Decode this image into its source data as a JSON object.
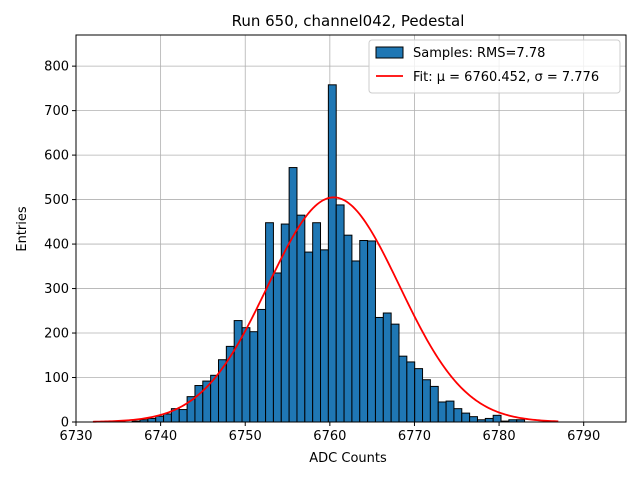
{
  "chart_data": {
    "type": "bar",
    "title": "Run 650, channel042, Pedestal",
    "xlabel": "ADC Counts",
    "ylabel": "Entries",
    "xlim": [
      6730,
      6795
    ],
    "ylim": [
      0,
      870
    ],
    "xticks": [
      6730,
      6740,
      6750,
      6760,
      6770,
      6780,
      6790
    ],
    "yticks": [
      0,
      100,
      200,
      300,
      400,
      500,
      600,
      700,
      800
    ],
    "grid": true,
    "legend_position": "top-right",
    "histogram": {
      "name": "Samples: RMS=7.78",
      "color": "#1f77b4",
      "bin_start": 6732,
      "bin_width": 0.9275,
      "counts": [
        0,
        0,
        0,
        0,
        0,
        2,
        5,
        8,
        13,
        18,
        30,
        28,
        57,
        82,
        92,
        105,
        140,
        170,
        228,
        212,
        203,
        253,
        448,
        335,
        445,
        572,
        465,
        382,
        448,
        387,
        758,
        488,
        420,
        362,
        408,
        407,
        235,
        245,
        220,
        148,
        135,
        120,
        95,
        80,
        45,
        47,
        30,
        20,
        12,
        5,
        8,
        15,
        2,
        5,
        5
      ]
    },
    "fit": {
      "legend": "Fit: μ = 6760.452, σ = 7.776",
      "color": "#ff0000",
      "mu": 6760.452,
      "sigma": 7.776,
      "amplitude": 505,
      "x_range": [
        6732,
        6787
      ]
    }
  }
}
